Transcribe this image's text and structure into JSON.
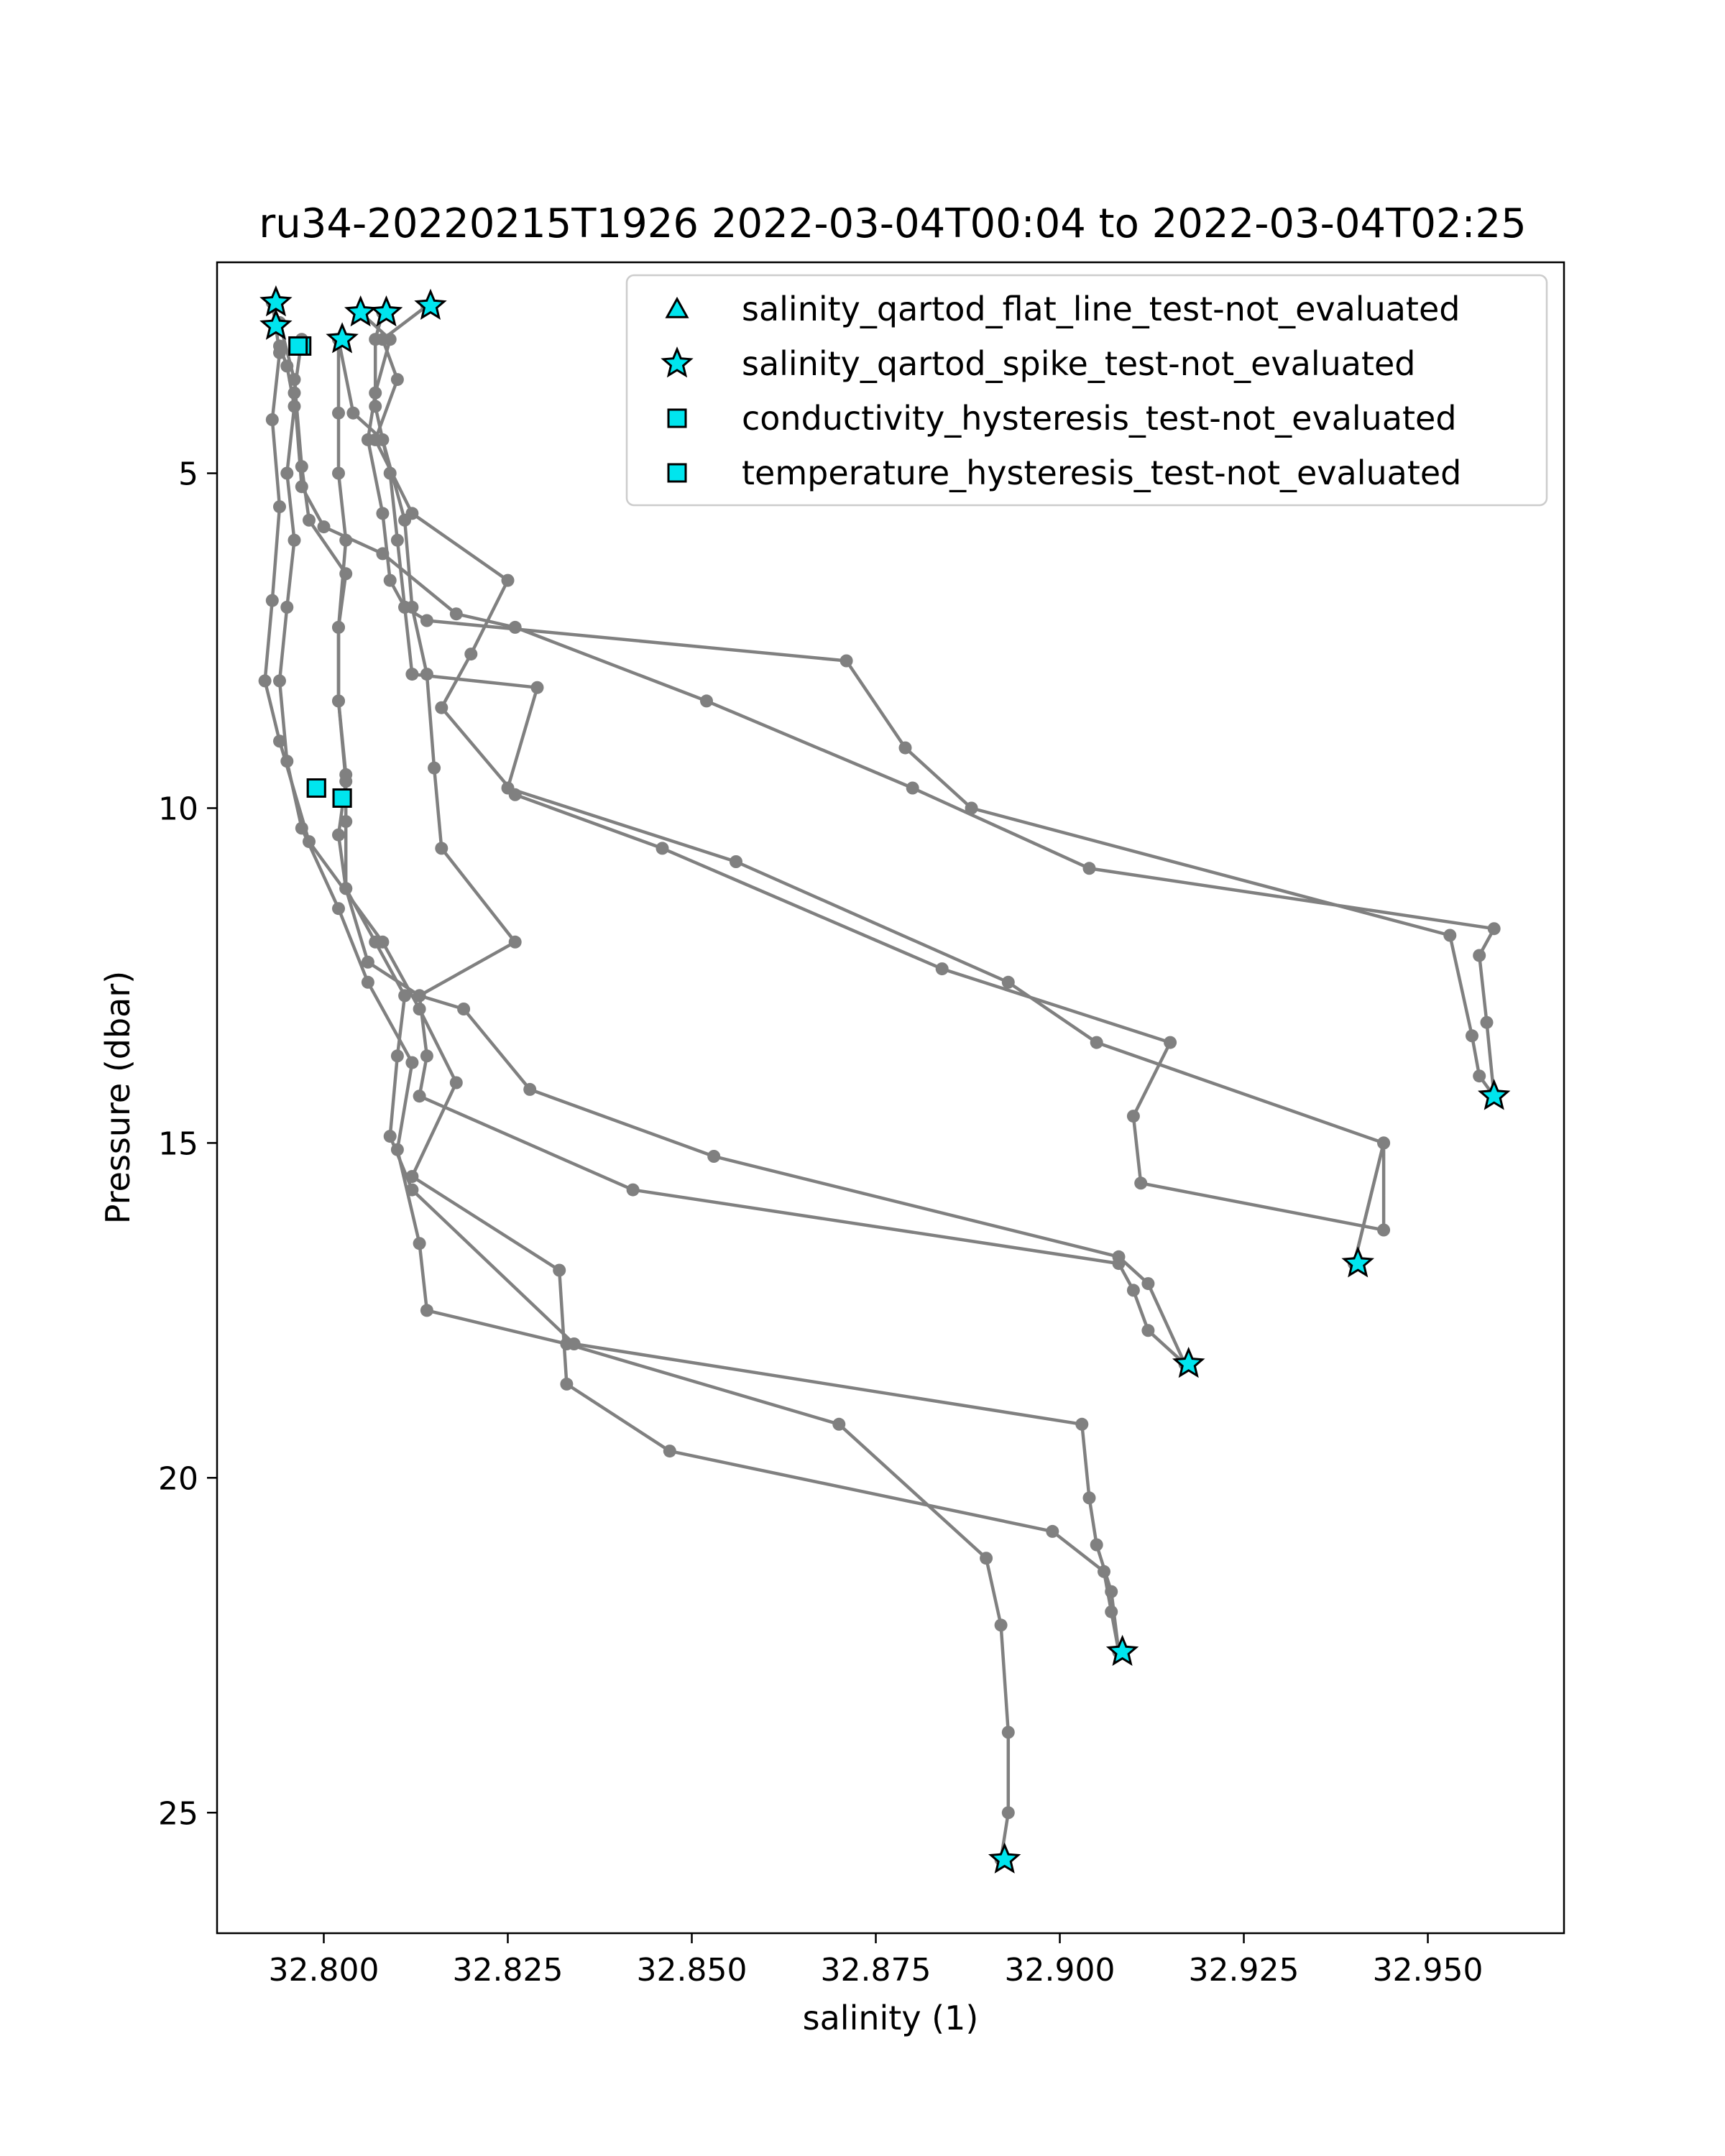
{
  "chart_data": {
    "type": "scatter",
    "title": "ru34-20220215T1926 2022-03-04T00:04 to 2022-03-04T02:25",
    "xlabel": "salinity (1)",
    "ylabel": "Pressure (dbar)",
    "xlim": [
      32.7855,
      32.9685
    ],
    "ylim": [
      26.8,
      1.85
    ],
    "y_inverted": true,
    "grid": false,
    "x_ticks": [
      32.8,
      32.825,
      32.85,
      32.875,
      32.9,
      32.925,
      32.95
    ],
    "x_tick_labels": [
      "32.800",
      "32.825",
      "32.850",
      "32.875",
      "32.900",
      "32.925",
      "32.950"
    ],
    "y_ticks": [
      5,
      10,
      15,
      20,
      25
    ],
    "y_tick_labels": [
      "5",
      "10",
      "15",
      "20",
      "25"
    ],
    "legend_position": "top-right",
    "profile_color": "#808080",
    "flag_color": "#00e5ee",
    "profiles": [
      [
        [
          32.794,
          3.1
        ],
        [
          32.795,
          3.4
        ],
        [
          32.796,
          4.0
        ],
        [
          32.795,
          5.0
        ],
        [
          32.796,
          6.0
        ],
        [
          32.795,
          7.0
        ],
        [
          32.794,
          8.1
        ],
        [
          32.795,
          9.3
        ],
        [
          32.797,
          10.3
        ],
        [
          32.802,
          11.5
        ],
        [
          32.806,
          12.6
        ],
        [
          32.812,
          13.8
        ],
        [
          32.81,
          15.1
        ],
        [
          32.813,
          16.5
        ],
        [
          32.814,
          17.5
        ],
        [
          32.833,
          18.0
        ],
        [
          32.87,
          19.2
        ],
        [
          32.89,
          21.2
        ],
        [
          32.892,
          22.2
        ],
        [
          32.893,
          23.8
        ],
        [
          32.893,
          25.0
        ],
        [
          32.892,
          25.7
        ]
      ],
      [
        [
          32.793,
          2.45
        ],
        [
          32.794,
          3.2
        ],
        [
          32.793,
          4.2
        ],
        [
          32.794,
          5.5
        ],
        [
          32.793,
          6.9
        ],
        [
          32.792,
          8.1
        ],
        [
          32.794,
          9.0
        ],
        [
          32.798,
          10.5
        ],
        [
          32.808,
          12.0
        ],
        [
          32.813,
          13.0
        ],
        [
          32.818,
          14.1
        ],
        [
          32.812,
          15.5
        ],
        [
          32.832,
          16.9
        ],
        [
          32.833,
          18.6
        ],
        [
          32.847,
          19.6
        ],
        [
          32.899,
          20.8
        ],
        [
          32.906,
          21.4
        ],
        [
          32.907,
          22.0
        ],
        [
          32.908,
          22.6
        ]
      ],
      [
        [
          32.794,
          2.75
        ],
        [
          32.796,
          3.6
        ],
        [
          32.797,
          4.9
        ],
        [
          32.798,
          5.7
        ],
        [
          32.803,
          6.5
        ],
        [
          32.802,
          7.3
        ],
        [
          32.802,
          8.4
        ],
        [
          32.803,
          9.6
        ],
        [
          32.802,
          10.4
        ],
        [
          32.803,
          11.2
        ],
        [
          32.807,
          12.0
        ],
        [
          32.811,
          12.8
        ],
        [
          32.81,
          13.7
        ],
        [
          32.809,
          14.9
        ],
        [
          32.812,
          15.7
        ],
        [
          32.834,
          18.0
        ],
        [
          32.903,
          19.2
        ],
        [
          32.904,
          20.3
        ],
        [
          32.905,
          21.0
        ],
        [
          32.907,
          21.7
        ],
        [
          32.908,
          22.6
        ]
      ],
      [
        [
          32.797,
          3.0
        ],
        [
          32.796,
          3.8
        ],
        [
          32.797,
          5.2
        ],
        [
          32.8,
          5.8
        ],
        [
          32.808,
          6.2
        ],
        [
          32.818,
          7.1
        ],
        [
          32.826,
          7.3
        ],
        [
          32.852,
          8.4
        ],
        [
          32.88,
          9.7
        ],
        [
          32.904,
          10.9
        ],
        [
          32.959,
          11.8
        ],
        [
          32.957,
          12.2
        ],
        [
          32.958,
          13.2
        ],
        [
          32.959,
          14.3
        ]
      ],
      [
        [
          32.802,
          3.0
        ],
        [
          32.802,
          4.1
        ],
        [
          32.802,
          5.0
        ],
        [
          32.803,
          6.0
        ],
        [
          32.802,
          7.3
        ],
        [
          32.802,
          8.4
        ],
        [
          32.803,
          9.5
        ],
        [
          32.803,
          10.2
        ],
        [
          32.803,
          11.2
        ],
        [
          32.806,
          12.3
        ],
        [
          32.813,
          12.8
        ],
        [
          32.814,
          13.7
        ],
        [
          32.813,
          14.3
        ],
        [
          32.842,
          15.7
        ],
        [
          32.908,
          16.8
        ],
        [
          32.91,
          17.2
        ],
        [
          32.912,
          17.8
        ],
        [
          32.917,
          18.3
        ]
      ],
      [
        [
          32.805,
          2.6
        ],
        [
          32.809,
          3.0
        ],
        [
          32.807,
          3.8
        ],
        [
          32.806,
          4.5
        ],
        [
          32.808,
          5.6
        ],
        [
          32.809,
          6.6
        ],
        [
          32.811,
          7.0
        ],
        [
          32.814,
          7.2
        ],
        [
          32.871,
          7.8
        ],
        [
          32.879,
          9.1
        ],
        [
          32.888,
          10.0
        ],
        [
          32.953,
          11.9
        ],
        [
          32.956,
          13.4
        ],
        [
          32.957,
          14.0
        ],
        [
          32.959,
          14.3
        ]
      ],
      [
        [
          32.814,
          2.5
        ],
        [
          32.808,
          3.0
        ],
        [
          32.81,
          3.6
        ],
        [
          32.807,
          4.5
        ],
        [
          32.812,
          5.6
        ],
        [
          32.825,
          6.6
        ],
        [
          32.82,
          7.7
        ],
        [
          32.816,
          8.5
        ],
        [
          32.826,
          9.8
        ],
        [
          32.846,
          10.6
        ],
        [
          32.884,
          12.4
        ],
        [
          32.915,
          13.5
        ],
        [
          32.91,
          14.6
        ],
        [
          32.911,
          15.6
        ],
        [
          32.944,
          16.3
        ],
        [
          32.944,
          15.0
        ],
        [
          32.94,
          16.8
        ]
      ],
      [
        [
          32.808,
          2.6
        ],
        [
          32.807,
          3.0
        ],
        [
          32.807,
          4.0
        ],
        [
          32.809,
          5.0
        ],
        [
          32.81,
          6.0
        ],
        [
          32.811,
          7.0
        ],
        [
          32.812,
          8.0
        ],
        [
          32.829,
          8.2
        ],
        [
          32.825,
          9.7
        ],
        [
          32.856,
          10.8
        ],
        [
          32.893,
          12.6
        ],
        [
          32.905,
          13.5
        ],
        [
          32.944,
          15.0
        ],
        [
          32.94,
          16.8
        ]
      ],
      [
        [
          32.802,
          3.0
        ],
        [
          32.804,
          4.1
        ],
        [
          32.808,
          4.5
        ],
        [
          32.811,
          5.7
        ],
        [
          32.812,
          7.0
        ],
        [
          32.814,
          8.0
        ],
        [
          32.815,
          9.4
        ],
        [
          32.816,
          10.6
        ],
        [
          32.826,
          12.0
        ],
        [
          32.813,
          12.8
        ],
        [
          32.819,
          13.0
        ],
        [
          32.828,
          14.2
        ],
        [
          32.853,
          15.2
        ],
        [
          32.908,
          16.7
        ],
        [
          32.912,
          17.1
        ],
        [
          32.917,
          18.3
        ]
      ]
    ],
    "legend": [
      {
        "label": "salinity_qartod_flat_line_test-not_evaluated",
        "marker": "triangle"
      },
      {
        "label": "salinity_qartod_spike_test-not_evaluated",
        "marker": "star"
      },
      {
        "label": "conductivity_hysteresis_test-not_evaluated",
        "marker": "square"
      },
      {
        "label": "temperature_hysteresis_test-not_evaluated",
        "marker": "square"
      }
    ],
    "flags": {
      "salinity_qartod_spike_test-not_evaluated": [
        [
          32.7935,
          2.45
        ],
        [
          32.7935,
          2.8
        ],
        [
          32.805,
          2.6
        ],
        [
          32.8085,
          2.6
        ],
        [
          32.8145,
          2.5
        ],
        [
          32.8025,
          3.0
        ],
        [
          32.959,
          14.3
        ],
        [
          32.9405,
          16.8
        ],
        [
          32.9175,
          18.3
        ],
        [
          32.9085,
          22.6
        ],
        [
          32.8925,
          25.7
        ]
      ],
      "conductivity_hysteresis_test-not_evaluated": [
        [
          32.797,
          3.1
        ],
        [
          32.799,
          9.7
        ],
        [
          32.8025,
          9.85
        ]
      ],
      "temperature_hysteresis_test-not_evaluated": [
        [
          32.7965,
          3.1
        ],
        [
          32.799,
          9.7
        ],
        [
          32.8025,
          9.85
        ]
      ],
      "salinity_qartod_flat_line_test-not_evaluated": []
    }
  }
}
